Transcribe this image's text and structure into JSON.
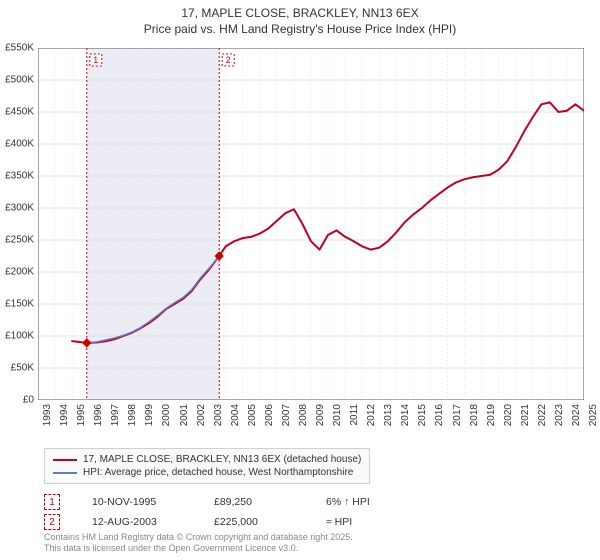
{
  "title": {
    "line1": "17, MAPLE CLOSE, BRACKLEY, NN13 6EX",
    "line2": "Price paid vs. HM Land Registry's House Price Index (HPI)"
  },
  "chart": {
    "type": "line",
    "background_color": "#ffffff",
    "grid_color": "#e0e0e0",
    "axis_color": "#555555",
    "shade_color": "#ecedf4",
    "ylim": [
      0,
      550
    ],
    "ytick_step": 50,
    "y_unit_prefix": "£",
    "y_unit_suffix": "K",
    "x_years": [
      1993,
      1994,
      1995,
      1996,
      1997,
      1998,
      1999,
      2000,
      2001,
      2002,
      2003,
      2004,
      2005,
      2006,
      2007,
      2008,
      2009,
      2010,
      2011,
      2012,
      2013,
      2014,
      2015,
      2016,
      2017,
      2018,
      2019,
      2020,
      2021,
      2022,
      2023,
      2024,
      2025
    ],
    "shaded_region": {
      "from_year": 1995.86,
      "to_year": 2003.62
    },
    "series": [
      {
        "name": "price_paid",
        "label": "17, MAPLE CLOSE, BRACKLEY, NN13 6EX (detached house)",
        "color": "#c00020",
        "width": 2,
        "data": [
          [
            1995.0,
            92
          ],
          [
            1995.86,
            89.25
          ],
          [
            1996.5,
            90
          ],
          [
            1997,
            92
          ],
          [
            1997.5,
            95
          ],
          [
            1998,
            100
          ],
          [
            1998.5,
            105
          ],
          [
            1999,
            112
          ],
          [
            1999.5,
            120
          ],
          [
            2000,
            130
          ],
          [
            2000.5,
            142
          ],
          [
            2001,
            150
          ],
          [
            2001.5,
            158
          ],
          [
            2002,
            170
          ],
          [
            2002.5,
            188
          ],
          [
            2003,
            203
          ],
          [
            2003.62,
            225
          ],
          [
            2004,
            240
          ],
          [
            2004.5,
            248
          ],
          [
            2005,
            253
          ],
          [
            2005.5,
            255
          ],
          [
            2006,
            260
          ],
          [
            2006.5,
            268
          ],
          [
            2007,
            280
          ],
          [
            2007.5,
            292
          ],
          [
            2008,
            298
          ],
          [
            2008.5,
            275
          ],
          [
            2009,
            248
          ],
          [
            2009.5,
            235
          ],
          [
            2010,
            258
          ],
          [
            2010.5,
            265
          ],
          [
            2011,
            255
          ],
          [
            2011.5,
            248
          ],
          [
            2012,
            240
          ],
          [
            2012.5,
            235
          ],
          [
            2013,
            238
          ],
          [
            2013.5,
            248
          ],
          [
            2014,
            262
          ],
          [
            2014.5,
            278
          ],
          [
            2015,
            290
          ],
          [
            2015.5,
            300
          ],
          [
            2016,
            312
          ],
          [
            2016.5,
            322
          ],
          [
            2017,
            332
          ],
          [
            2017.5,
            340
          ],
          [
            2018,
            345
          ],
          [
            2018.5,
            348
          ],
          [
            2019,
            350
          ],
          [
            2019.5,
            352
          ],
          [
            2020,
            360
          ],
          [
            2020.5,
            373
          ],
          [
            2021,
            395
          ],
          [
            2021.5,
            420
          ],
          [
            2022,
            442
          ],
          [
            2022.5,
            462
          ],
          [
            2023,
            465
          ],
          [
            2023.5,
            450
          ],
          [
            2024,
            452
          ],
          [
            2024.5,
            462
          ],
          [
            2025,
            452
          ],
          [
            2025.3,
            458
          ]
        ]
      },
      {
        "name": "hpi",
        "label": "HPI: Average price, detached house, West Northamptonshire",
        "color": "#5b7fc7",
        "width": 1.5,
        "data": [
          [
            1995.86,
            89.25
          ],
          [
            1996.5,
            91
          ],
          [
            1997,
            94
          ],
          [
            1997.5,
            97
          ],
          [
            1998,
            101
          ],
          [
            1998.5,
            106
          ],
          [
            1999,
            113
          ],
          [
            1999.5,
            122
          ],
          [
            2000,
            132
          ],
          [
            2000.5,
            143
          ],
          [
            2001,
            152
          ],
          [
            2001.5,
            160
          ],
          [
            2002,
            172
          ],
          [
            2002.5,
            190
          ],
          [
            2003,
            205
          ],
          [
            2003.62,
            225
          ]
        ]
      }
    ],
    "markers": [
      {
        "id": "1",
        "year": 1995.86,
        "value": 89.25,
        "color": "#cc0000"
      },
      {
        "id": "2",
        "year": 2003.62,
        "value": 225,
        "color": "#cc0000"
      }
    ]
  },
  "legend": {
    "items": [
      {
        "color": "#c00020",
        "label": "17, MAPLE CLOSE, BRACKLEY, NN13 6EX (detached house)"
      },
      {
        "color": "#5b7fc7",
        "label": "HPI: Average price, detached house, West Northamptonshire"
      }
    ]
  },
  "marker_table": {
    "rows": [
      {
        "badge": "1",
        "date": "10-NOV-1995",
        "price": "£89,250",
        "note": "6% ↑ HPI"
      },
      {
        "badge": "2",
        "date": "12-AUG-2003",
        "price": "£225,000",
        "note": "≈ HPI"
      }
    ]
  },
  "footnote": {
    "line1": "Contains HM Land Registry data © Crown copyright and database right 2025.",
    "line2": "This data is licensed under the Open Government Licence v3.0."
  }
}
